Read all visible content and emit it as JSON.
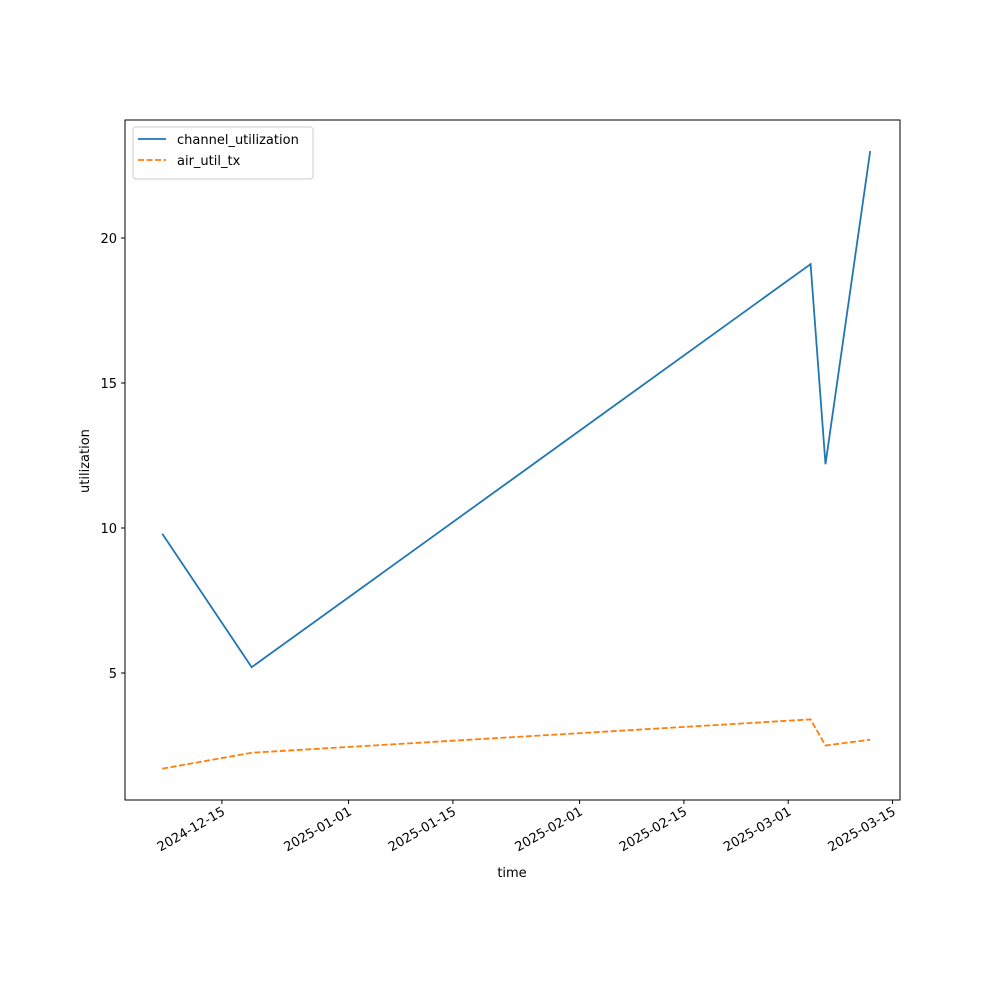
{
  "chart_data": {
    "type": "line",
    "xlabel": "time",
    "ylabel": "utilization",
    "x": [
      "2024-12-07",
      "2024-12-19",
      "2025-03-04",
      "2025-03-06",
      "2025-03-12"
    ],
    "series": [
      {
        "name": "channel_utilization",
        "color": "#1f77b4",
        "linestyle": "solid",
        "values": [
          9.8,
          5.2,
          19.1,
          12.2,
          23.0
        ]
      },
      {
        "name": "air_util_tx",
        "color": "#ff7f0e",
        "linestyle": "dashed",
        "values": [
          1.7,
          2.25,
          3.4,
          2.5,
          2.7
        ]
      }
    ],
    "xlim": [
      "2024-12-02",
      "2025-03-16"
    ],
    "xticks": [
      "2024-12-15",
      "2025-01-01",
      "2025-01-15",
      "2025-02-01",
      "2025-02-15",
      "2025-03-01",
      "2025-03-15"
    ],
    "ylim": [
      0.62,
      24.07
    ],
    "yticks": [
      5,
      10,
      15,
      20
    ],
    "legend": "upper left"
  }
}
